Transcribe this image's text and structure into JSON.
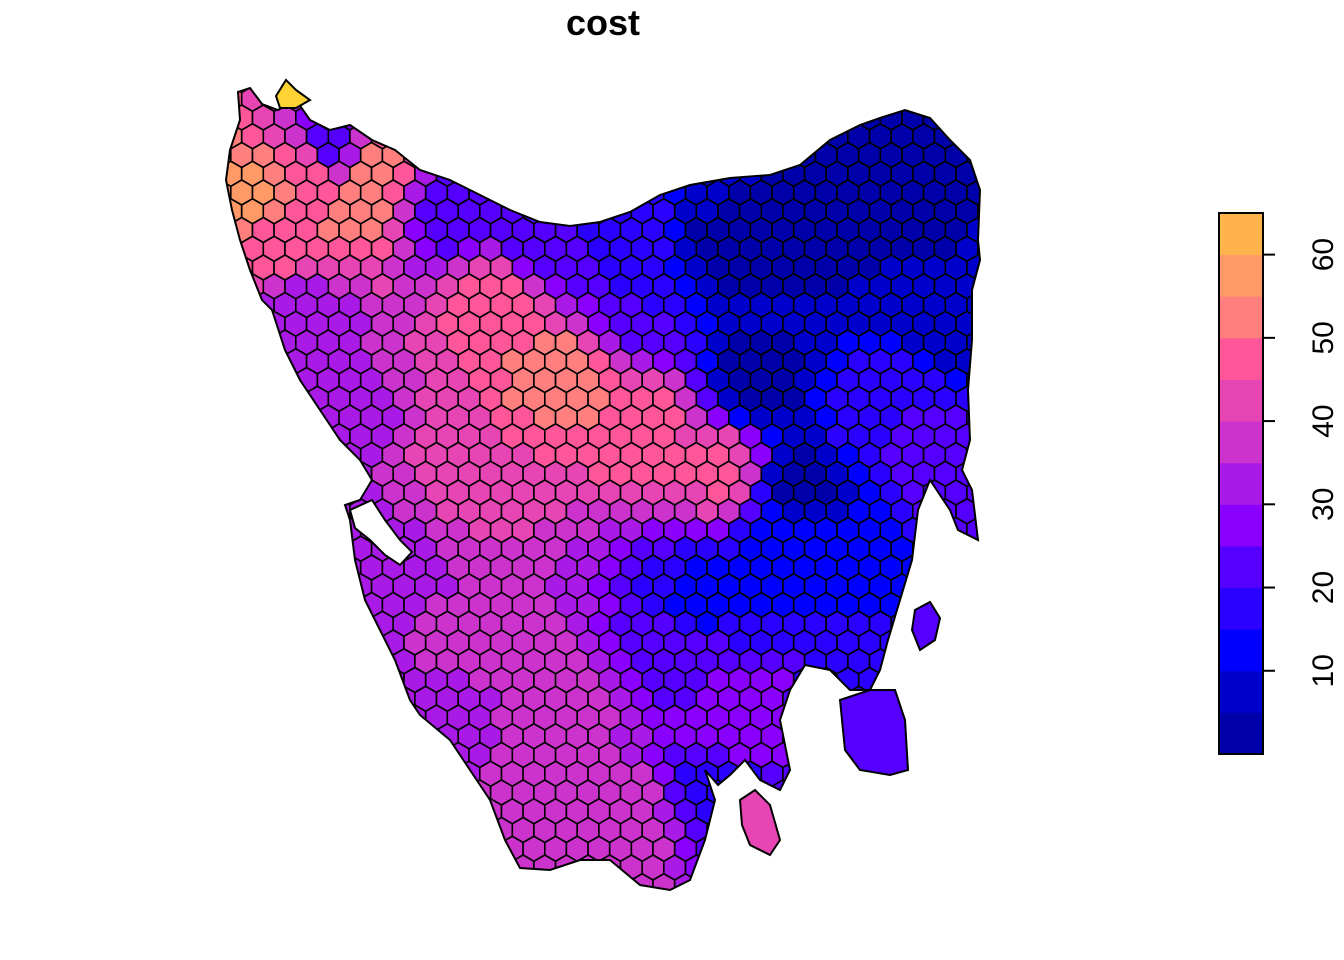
{
  "title": "cost",
  "legend": {
    "min": 0,
    "max": 65,
    "step": 5,
    "ticks": [
      10,
      20,
      30,
      40,
      50,
      60
    ],
    "ramp": [
      "#0000AA",
      "#0000CC",
      "#0000FF",
      "#2A00FF",
      "#5500FF",
      "#8A00FF",
      "#AA1AE6",
      "#CC33CC",
      "#E645B3",
      "#FF5599",
      "#FF7F7F",
      "#FF9966",
      "#FFB34D",
      "#FFD333",
      "#FFF500"
    ]
  },
  "map": {
    "region": "Tasmania",
    "cell_shape": "hexagon",
    "value_regions": [
      {
        "area": "north-west tip",
        "value_range": [
          45,
          65
        ]
      },
      {
        "area": "north coast",
        "value_range": [
          15,
          30
        ]
      },
      {
        "area": "central plateau",
        "value_range": [
          40,
          55
        ]
      },
      {
        "area": "west and south-west",
        "value_range": [
          30,
          42
        ]
      },
      {
        "area": "north-east",
        "value_range": [
          0,
          10
        ]
      },
      {
        "area": "east coast",
        "value_range": [
          10,
          25
        ]
      },
      {
        "area": "south-east",
        "value_range": [
          15,
          35
        ]
      }
    ]
  }
}
